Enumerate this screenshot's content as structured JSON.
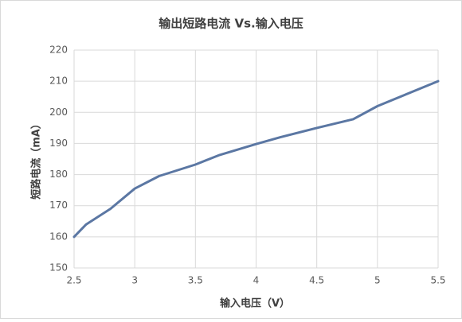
{
  "chart_data": {
    "type": "line",
    "title": "输出短路电流 Vs.输入电压",
    "x_label": "输入电压（V）",
    "y_label": "短路电流（mA）",
    "x": [
      2.5,
      2.6,
      2.8,
      3.0,
      3.2,
      3.5,
      3.7,
      4.0,
      4.2,
      4.5,
      4.8,
      5.0,
      5.5
    ],
    "series": [
      {
        "name": "短路电流",
        "color": "#5b77a3",
        "values": [
          160,
          164,
          169,
          175.5,
          179.5,
          183.2,
          186.3,
          189.8,
          192,
          195,
          197.8,
          202,
          210
        ]
      }
    ],
    "xlim": [
      2.5,
      5.5
    ],
    "xticks": [
      2.5,
      3,
      3.5,
      4,
      4.5,
      5,
      5.5
    ],
    "ylim": [
      150,
      220
    ],
    "yticks": [
      150,
      160,
      170,
      180,
      190,
      200,
      210,
      220
    ],
    "grid": true
  }
}
